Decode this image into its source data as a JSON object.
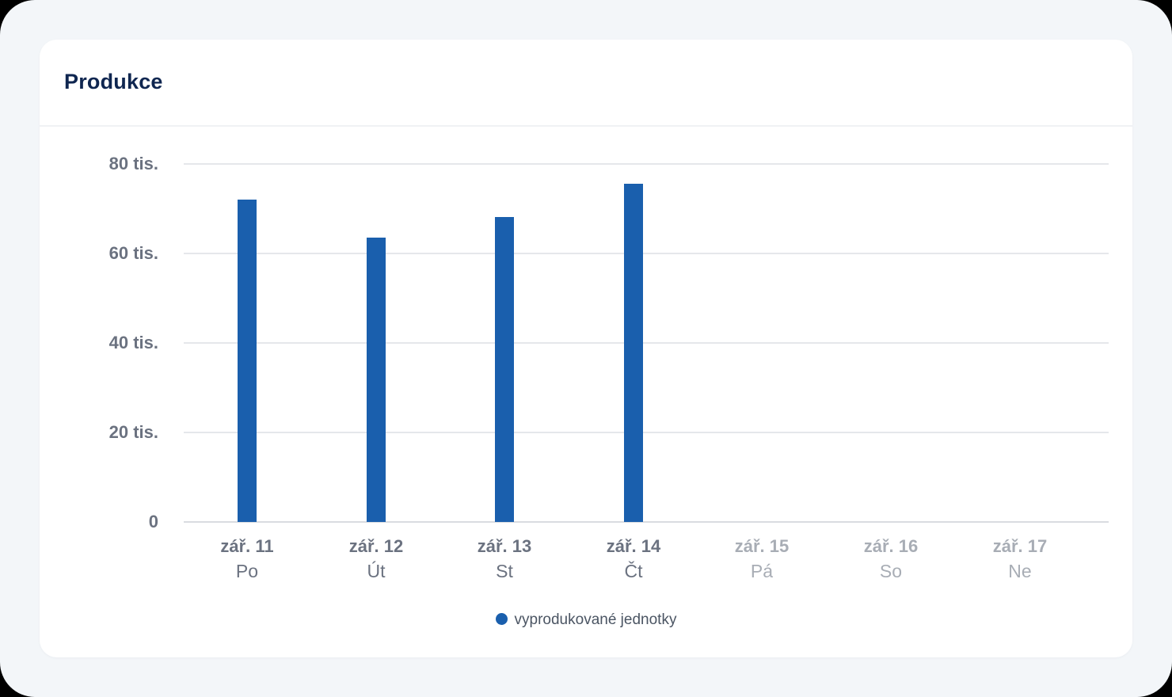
{
  "card": {
    "title": "Produkce"
  },
  "chart_data": {
    "type": "bar",
    "title": "Produkce",
    "xlabel": "",
    "ylabel": "",
    "ylim": [
      0,
      80000
    ],
    "grid": true,
    "legend_position": "bottom",
    "y_ticks": [
      "0",
      "20 tis.",
      "40 tis.",
      "60 tis.",
      "80 tis."
    ],
    "categories": [
      {
        "date": "zář. 11",
        "day": "Po",
        "future": false
      },
      {
        "date": "zář. 12",
        "day": "Út",
        "future": false
      },
      {
        "date": "zář. 13",
        "day": "St",
        "future": false
      },
      {
        "date": "zář. 14",
        "day": "Čt",
        "future": false
      },
      {
        "date": "zář. 15",
        "day": "Pá",
        "future": true
      },
      {
        "date": "zář. 16",
        "day": "So",
        "future": true
      },
      {
        "date": "zář. 17",
        "day": "Ne",
        "future": true
      }
    ],
    "series": [
      {
        "name": "vyprodukované jednotky",
        "color": "#1a5fad",
        "values": [
          72000,
          63500,
          68100,
          75600,
          null,
          null,
          null
        ]
      }
    ]
  },
  "legend": {
    "label": "vyprodukované jednotky",
    "color": "#1a5fad"
  }
}
